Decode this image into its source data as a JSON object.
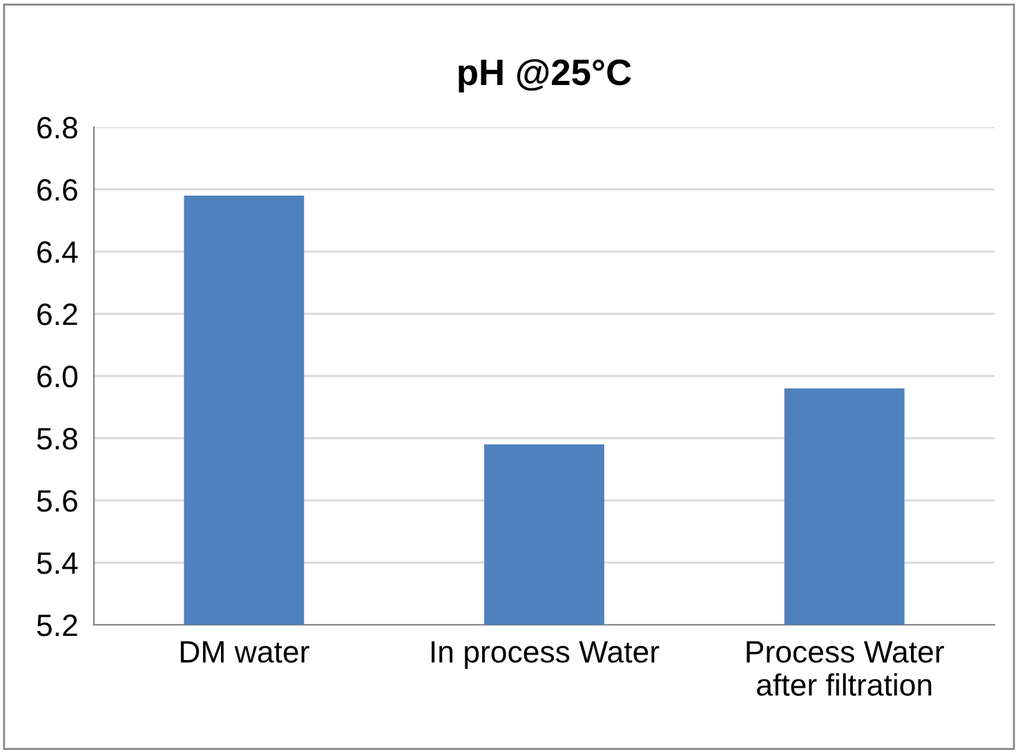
{
  "chart_data": {
    "type": "bar",
    "title": "pH @25°C",
    "categories": [
      "DM water",
      "In process Water",
      "Process Water\nafter filtration"
    ],
    "values": [
      6.58,
      5.78,
      5.96
    ],
    "color": "#4f81bd",
    "ylim": [
      5.2,
      6.8
    ],
    "yticks": [
      {
        "value": 5.2,
        "label": "5.2"
      },
      {
        "value": 5.4,
        "label": "5.4"
      },
      {
        "value": 5.6,
        "label": "5.6"
      },
      {
        "value": 5.8,
        "label": "5.8"
      },
      {
        "value": 6.0,
        "label": "6.0"
      },
      {
        "value": 6.2,
        "label": "6.2"
      },
      {
        "value": 6.4,
        "label": "6.4"
      },
      {
        "value": 6.6,
        "label": "6.6"
      },
      {
        "value": 6.8,
        "label": "6.8"
      }
    ],
    "grid": "y",
    "legend": false
  }
}
